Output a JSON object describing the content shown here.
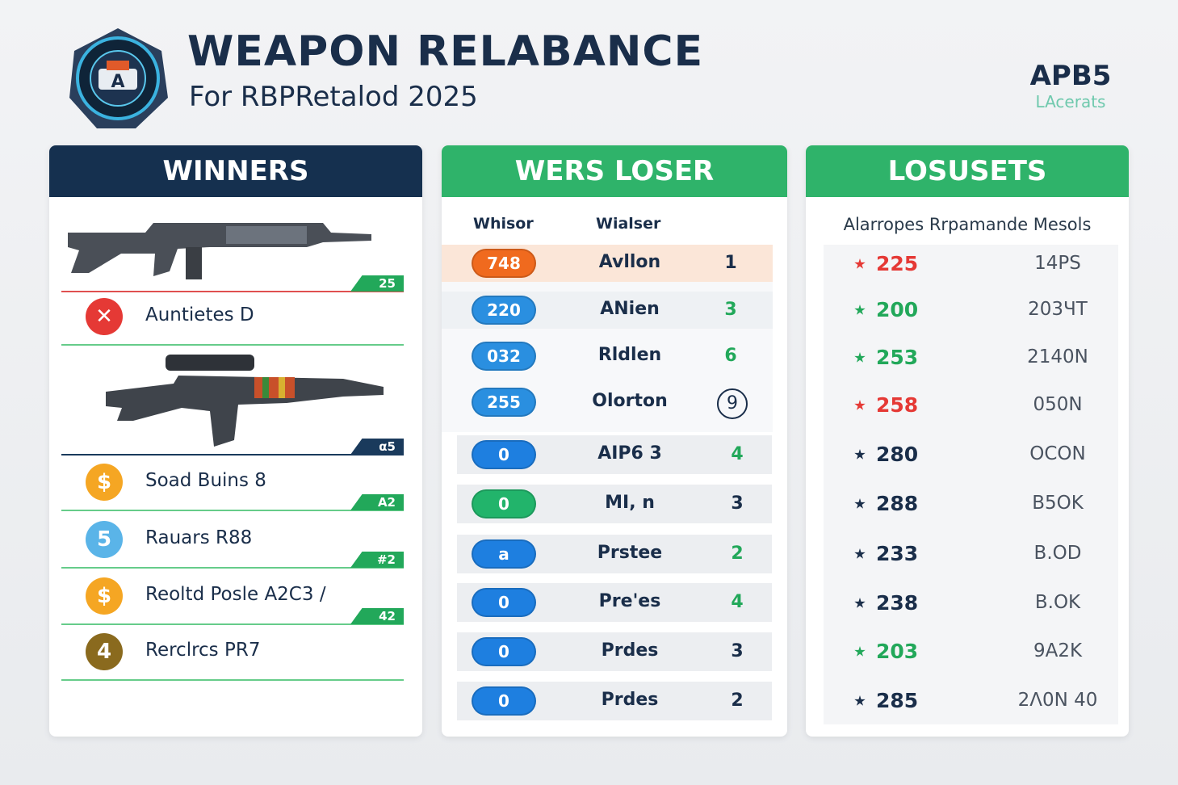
{
  "header": {
    "title": "WEAPON RELABANCE",
    "subtitle": "For RBPRetalod 2025",
    "brand": "APB5",
    "brand_sub": "LAcerats"
  },
  "winners": {
    "title": "WINNERS",
    "weapons": [
      {
        "badge": "25",
        "rows": [
          {
            "icon": "✕",
            "color": "#e53935",
            "label": "Auntietes D"
          }
        ]
      },
      {
        "badge": "α5",
        "rows": [
          {
            "icon": "$",
            "color": "#f5a623",
            "label": "Soad Buins 8",
            "badge": "A2"
          },
          {
            "icon": "5",
            "color": "#5ab4e8",
            "label": "Rauars R88",
            "badge": "#2"
          },
          {
            "icon": "$",
            "color": "#f5a623",
            "label": "Reoltd Posle A2C3 /",
            "badge": "42"
          },
          {
            "icon": "4",
            "color": "#8a6a1e",
            "label": "Rerclrcs PR7"
          }
        ]
      }
    ]
  },
  "losers": {
    "title": "WERS LOSER",
    "columns": [
      "Whisor",
      "Wialser"
    ],
    "rows": [
      {
        "badge": "748",
        "color": "#f06a1e",
        "name": "Avllon",
        "count": "1",
        "count_color": "#1a2e4a"
      },
      {
        "badge": "220",
        "color": "#2a8fe0",
        "name": "ANien",
        "count": "3",
        "count_color": "#22a85a"
      },
      {
        "badge": "032",
        "color": "#2a8fe0",
        "name": "Rldlen",
        "count": "6",
        "count_color": "#22a85a"
      },
      {
        "badge": "255",
        "color": "#2a8fe0",
        "name": "Olorton",
        "count": "9",
        "count_color": "#1a2e4a",
        "circled": true
      },
      {
        "badge": "0",
        "color": "#1e7fe0",
        "name": "AIP6 3",
        "count": "4",
        "count_color": "#22a85a"
      },
      {
        "badge": "0",
        "color": "#22b46b",
        "name": "MI, n",
        "count": "3",
        "count_color": "#1a2e4a"
      },
      {
        "badge": "a",
        "color": "#1e7fe0",
        "name": "Prstee",
        "count": "2",
        "count_color": "#22a85a"
      },
      {
        "badge": "0",
        "color": "#1e7fe0",
        "name": "Pre'es",
        "count": "4",
        "count_color": "#22a85a"
      },
      {
        "badge": "0",
        "color": "#1e7fe0",
        "name": "Prdes",
        "count": "3",
        "count_color": "#1a2e4a"
      },
      {
        "badge": "0",
        "color": "#1e7fe0",
        "name": "Prdes",
        "count": "2",
        "count_color": "#1a2e4a"
      }
    ]
  },
  "losusets": {
    "title": "LOSUSETS",
    "columns": "Alarropes Rrpamande Mesols",
    "rows": [
      {
        "value": "225",
        "code": "14PS",
        "color": "#e53935"
      },
      {
        "value": "200",
        "code": "203ЧT",
        "color": "#22a85a"
      },
      {
        "value": "253",
        "code": "2140N",
        "color": "#22a85a"
      },
      {
        "value": "258",
        "code": "050N",
        "color": "#e53935"
      },
      {
        "value": "280",
        "code": "OCON",
        "color": "#1a2e4a"
      },
      {
        "value": "288",
        "code": "B5OK",
        "color": "#1a2e4a"
      },
      {
        "value": "233",
        "code": "B.OD",
        "color": "#1a2e4a"
      },
      {
        "value": "238",
        "code": "B.OK",
        "color": "#1a2e4a"
      },
      {
        "value": "203",
        "code": "9A2K",
        "color": "#22a85a"
      },
      {
        "value": "285",
        "code": "2Λ0N 40",
        "color": "#1a2e4a"
      }
    ]
  }
}
